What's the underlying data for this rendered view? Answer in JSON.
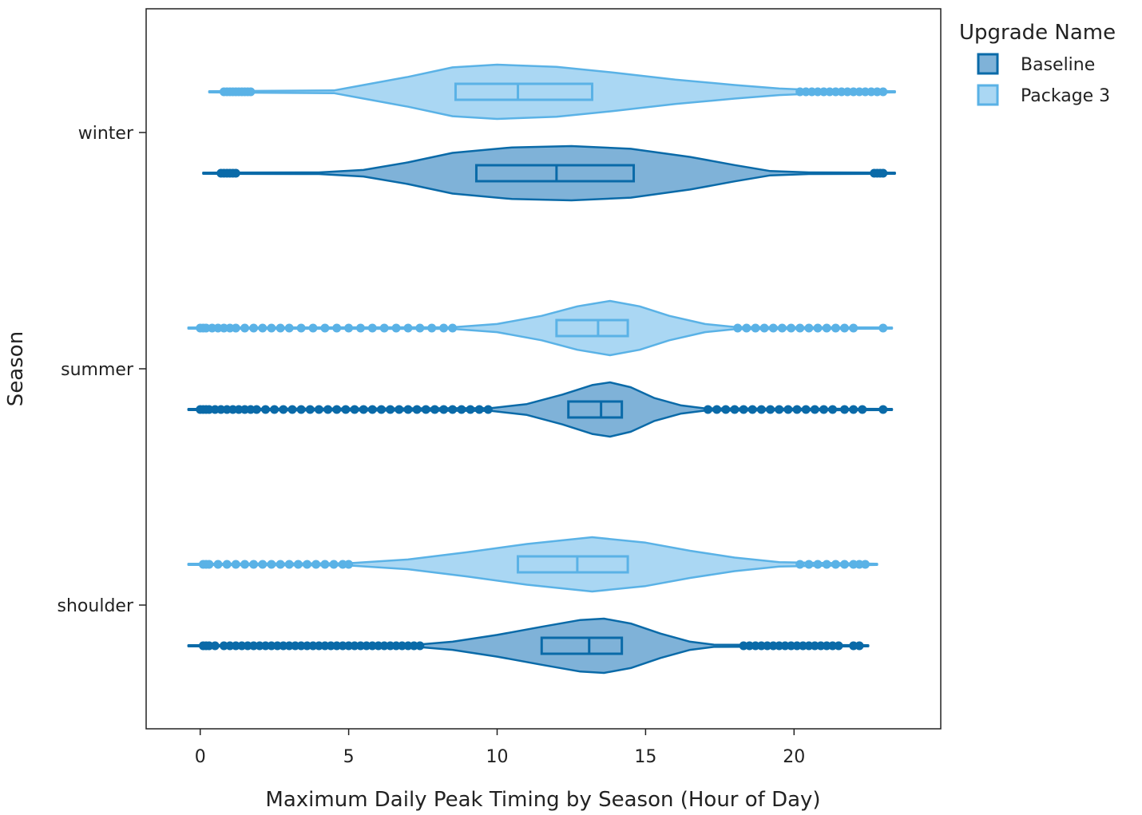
{
  "chart_data": {
    "type": "violin",
    "orientation": "horizontal",
    "xlabel": "Maximum Daily Peak Timing by Season (Hour of Day)",
    "ylabel": "Season",
    "xlim": [
      -1.8,
      25
    ],
    "xticks": [
      0,
      5,
      10,
      15,
      20
    ],
    "xtick_labels": [
      "0",
      "5",
      "10",
      "15",
      "20"
    ],
    "categories": [
      "winter",
      "summer",
      "shoulder"
    ],
    "grid": false,
    "legend": {
      "title": "Upgrade Name",
      "placement": "top-right outside",
      "entries": [
        "Baseline",
        "Package 3"
      ]
    },
    "colors": {
      "Baseline": {
        "line": "#0a6aa8",
        "fill": "#7fb2d8"
      },
      "Package 3": {
        "line": "#5ab2e6",
        "fill": "#aad7f3"
      }
    },
    "series": [
      {
        "name": "Package 3",
        "groups": [
          {
            "category": "winter",
            "range": [
              0.3,
              23.4
            ],
            "box": {
              "q1": 8.6,
              "median": 10.7,
              "q3": 13.2
            },
            "density": [
              [
                0.3,
                0.02
              ],
              [
                4.5,
                0.05
              ],
              [
                5.5,
                0.25
              ],
              [
                7,
                0.55
              ],
              [
                8.5,
                0.9
              ],
              [
                10,
                1.0
              ],
              [
                12,
                0.92
              ],
              [
                14,
                0.7
              ],
              [
                16,
                0.45
              ],
              [
                18,
                0.25
              ],
              [
                19.5,
                0.12
              ],
              [
                21,
                0.05
              ],
              [
                23.4,
                0.02
              ]
            ],
            "outliers": [
              0.8,
              0.9,
              1.0,
              1.1,
              1.2,
              1.3,
              1.4,
              1.5,
              1.6,
              1.7,
              20.2,
              20.4,
              20.6,
              20.8,
              21.0,
              21.2,
              21.4,
              21.6,
              21.8,
              22.0,
              22.2,
              22.4,
              22.6,
              22.8,
              23.0
            ]
          },
          {
            "category": "summer",
            "range": [
              -0.4,
              23.3
            ],
            "box": {
              "q1": 12.0,
              "median": 13.4,
              "q3": 14.4
            },
            "density": [
              [
                -0.4,
                0.02
              ],
              [
                8.5,
                0.03
              ],
              [
                10,
                0.15
              ],
              [
                11.5,
                0.45
              ],
              [
                12.7,
                0.8
              ],
              [
                13.8,
                1.0
              ],
              [
                14.8,
                0.8
              ],
              [
                15.8,
                0.45
              ],
              [
                17,
                0.15
              ],
              [
                18,
                0.04
              ],
              [
                23.3,
                0.02
              ]
            ],
            "outliers": [
              0.0,
              0.1,
              0.2,
              0.4,
              0.6,
              0.8,
              1.0,
              1.2,
              1.5,
              1.8,
              2.1,
              2.4,
              2.7,
              3.0,
              3.4,
              3.8,
              4.2,
              4.6,
              5.0,
              5.4,
              5.8,
              6.2,
              6.6,
              7.0,
              7.4,
              7.8,
              8.2,
              8.5,
              18.1,
              18.4,
              18.7,
              19.0,
              19.3,
              19.6,
              19.9,
              20.2,
              20.5,
              20.8,
              21.1,
              21.4,
              21.7,
              22.0,
              23.0
            ]
          },
          {
            "category": "shoulder",
            "range": [
              -0.4,
              22.8
            ],
            "box": {
              "q1": 10.7,
              "median": 12.7,
              "q3": 14.4
            },
            "density": [
              [
                -0.4,
                0.02
              ],
              [
                5,
                0.04
              ],
              [
                7,
                0.18
              ],
              [
                9,
                0.45
              ],
              [
                11,
                0.75
              ],
              [
                13.2,
                1.0
              ],
              [
                15,
                0.8
              ],
              [
                16.5,
                0.5
              ],
              [
                18,
                0.25
              ],
              [
                19.5,
                0.08
              ],
              [
                22.8,
                0.02
              ]
            ],
            "outliers": [
              0.1,
              0.2,
              0.3,
              0.6,
              0.9,
              1.2,
              1.5,
              1.8,
              2.1,
              2.4,
              2.7,
              3.0,
              3.3,
              3.6,
              3.9,
              4.2,
              4.5,
              4.8,
              5.0,
              20.2,
              20.5,
              20.8,
              21.1,
              21.4,
              21.7,
              22.0,
              22.2,
              22.4
            ]
          }
        ]
      },
      {
        "name": "Baseline",
        "groups": [
          {
            "category": "winter",
            "range": [
              0.1,
              23.4
            ],
            "box": {
              "q1": 9.3,
              "median": 12.0,
              "q3": 14.6
            },
            "density": [
              [
                0.1,
                0.02
              ],
              [
                4,
                0.03
              ],
              [
                5.5,
                0.12
              ],
              [
                7,
                0.4
              ],
              [
                8.5,
                0.75
              ],
              [
                10.5,
                0.95
              ],
              [
                12.5,
                1.0
              ],
              [
                14.5,
                0.9
              ],
              [
                16.5,
                0.6
              ],
              [
                18,
                0.3
              ],
              [
                19.2,
                0.08
              ],
              [
                20.5,
                0.03
              ],
              [
                23.4,
                0.02
              ]
            ],
            "outliers": [
              0.7,
              0.8,
              0.9,
              1.0,
              1.1,
              1.2,
              22.7,
              22.8,
              22.9,
              23.0
            ]
          },
          {
            "category": "summer",
            "range": [
              -0.4,
              23.3
            ],
            "box": {
              "q1": 12.4,
              "median": 13.5,
              "q3": 14.2
            },
            "density": [
              [
                -0.4,
                0.02
              ],
              [
                9.8,
                0.05
              ],
              [
                11,
                0.2
              ],
              [
                12.2,
                0.55
              ],
              [
                13.2,
                0.9
              ],
              [
                13.8,
                1.0
              ],
              [
                14.5,
                0.82
              ],
              [
                15.3,
                0.42
              ],
              [
                16.2,
                0.15
              ],
              [
                17,
                0.04
              ],
              [
                23.3,
                0.02
              ]
            ],
            "outliers": [
              0.0,
              0.1,
              0.2,
              0.3,
              0.5,
              0.7,
              0.9,
              1.1,
              1.3,
              1.5,
              1.7,
              1.9,
              2.2,
              2.5,
              2.8,
              3.1,
              3.4,
              3.7,
              4.0,
              4.3,
              4.6,
              4.9,
              5.2,
              5.5,
              5.8,
              6.1,
              6.4,
              6.7,
              7.0,
              7.3,
              7.6,
              7.9,
              8.2,
              8.5,
              8.8,
              9.1,
              9.4,
              9.7,
              17.1,
              17.4,
              17.7,
              18.0,
              18.3,
              18.6,
              18.9,
              19.2,
              19.5,
              19.8,
              20.1,
              20.4,
              20.7,
              21.0,
              21.3,
              21.7,
              22.0,
              22.3,
              23.0
            ]
          },
          {
            "category": "shoulder",
            "range": [
              -0.4,
              22.5
            ],
            "box": {
              "q1": 11.5,
              "median": 13.1,
              "q3": 14.2
            },
            "density": [
              [
                -0.4,
                0.02
              ],
              [
                7.3,
                0.04
              ],
              [
                8.5,
                0.15
              ],
              [
                10,
                0.4
              ],
              [
                11.5,
                0.7
              ],
              [
                12.8,
                0.95
              ],
              [
                13.6,
                1.0
              ],
              [
                14.5,
                0.82
              ],
              [
                15.5,
                0.45
              ],
              [
                16.5,
                0.15
              ],
              [
                17.3,
                0.04
              ],
              [
                22.5,
                0.02
              ]
            ],
            "outliers": [
              0.1,
              0.2,
              0.3,
              0.5,
              0.8,
              1.0,
              1.2,
              1.4,
              1.6,
              1.8,
              2.0,
              2.2,
              2.4,
              2.6,
              2.8,
              3.0,
              3.2,
              3.4,
              3.6,
              3.8,
              4.0,
              4.2,
              4.4,
              4.6,
              4.8,
              5.0,
              5.2,
              5.4,
              5.6,
              5.8,
              6.0,
              6.2,
              6.4,
              6.6,
              6.8,
              7.0,
              7.2,
              7.4,
              18.3,
              18.5,
              18.7,
              18.9,
              19.1,
              19.3,
              19.5,
              19.7,
              19.9,
              20.1,
              20.3,
              20.5,
              20.7,
              20.9,
              21.1,
              21.3,
              21.5,
              22.0,
              22.2
            ]
          }
        ]
      }
    ]
  }
}
